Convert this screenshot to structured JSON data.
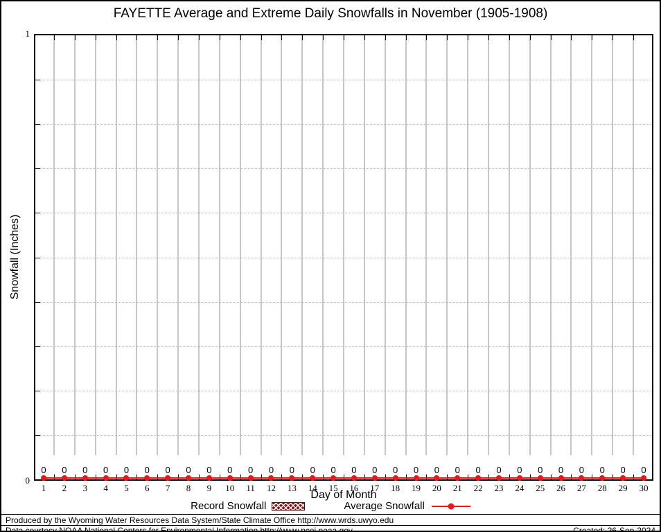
{
  "page": {
    "title": "FAYETTE Average and Extreme Daily Snowfalls in November (1905-1908)"
  },
  "chart_data": {
    "type": "line",
    "title": "FAYETTE Average and Extreme Daily Snowfalls in November (1905-1908)",
    "xlabel": "Day of Month",
    "ylabel": "Snowfall (Inches)",
    "x": [
      1,
      2,
      3,
      4,
      5,
      6,
      7,
      8,
      9,
      10,
      11,
      12,
      13,
      14,
      15,
      16,
      17,
      18,
      19,
      20,
      21,
      22,
      23,
      24,
      25,
      26,
      27,
      28,
      29,
      30
    ],
    "ylim": [
      0,
      1
    ],
    "y_labeled_ticks": [
      {
        "value": 1,
        "label": "1"
      },
      {
        "value": 0,
        "label": "0"
      }
    ],
    "y_minor_tick_step": 0.1,
    "grid": {
      "vertical_solid_lines_at_half_day_positions": true,
      "horizontal_dotted_lines_at_minor_ticks": true
    },
    "series": [
      {
        "name": "Record Snowfall",
        "type": "bar",
        "style": "hatched",
        "color": "#801414",
        "values": [
          0,
          0,
          0,
          0,
          0,
          0,
          0,
          0,
          0,
          0,
          0,
          0,
          0,
          0,
          0,
          0,
          0,
          0,
          0,
          0,
          0,
          0,
          0,
          0,
          0,
          0,
          0,
          0,
          0,
          0
        ]
      },
      {
        "name": "Average Snowfall",
        "type": "line-with-markers",
        "color": "#ee1616",
        "values": [
          0,
          0,
          0,
          0,
          0,
          0,
          0,
          0,
          0,
          0,
          0,
          0,
          0,
          0,
          0,
          0,
          0,
          0,
          0,
          0,
          0,
          0,
          0,
          0,
          0,
          0,
          0,
          0,
          0,
          0
        ]
      }
    ],
    "point_labels": [
      "0",
      "0",
      "0",
      "0",
      "0",
      "0",
      "0",
      "0",
      "0",
      "0",
      "0",
      "0",
      "0",
      "0",
      "0",
      "0",
      "0",
      "0",
      "0",
      "0",
      "0",
      "0",
      "0",
      "0",
      "0",
      "0",
      "0",
      "0",
      "0",
      "0"
    ],
    "legend_position": "bottom-center"
  },
  "colors": {
    "average_red": "#ee1616",
    "record_dark_red": "#801414",
    "grid_solid_gray": "#c6c6c6",
    "grid_dotted_gray": "#b4b4b4",
    "frame_black": "#000000"
  },
  "footer": {
    "produced_by": "Produced by the Wyoming Water Resources Data System/State Climate Office http://www.wrds.uwyo.edu",
    "data_courtesy": "Data courtesy NOAA National Centers for Environmental Information http://www.ncei.noaa.gov",
    "created": "Created: 26-Sep-2024"
  }
}
